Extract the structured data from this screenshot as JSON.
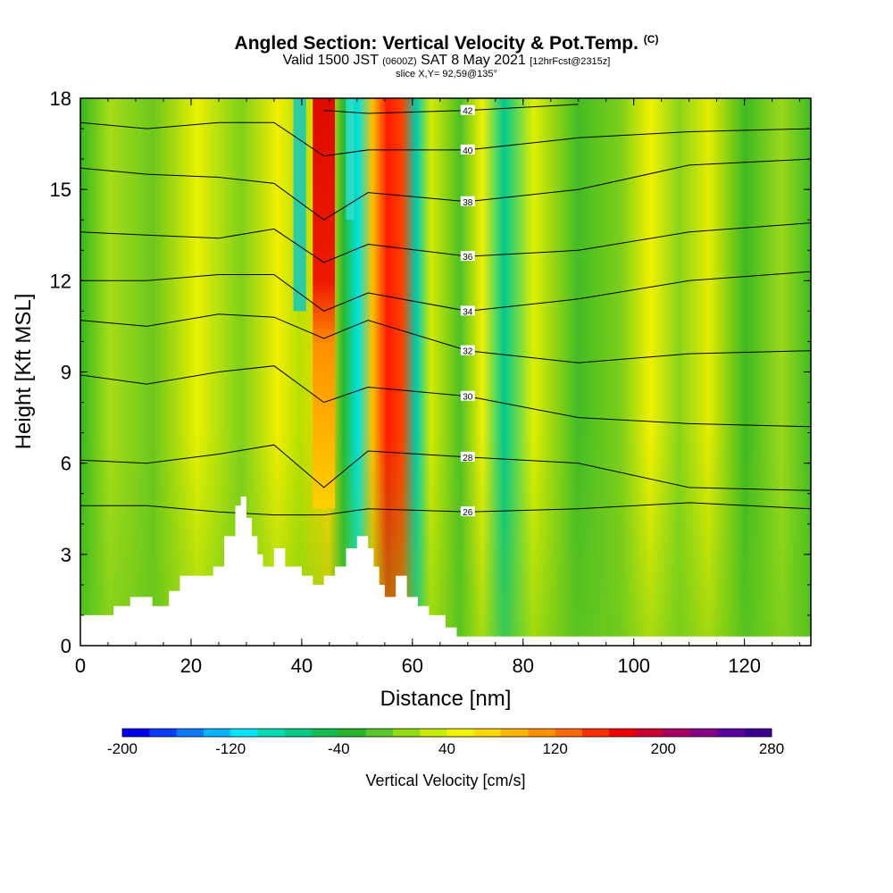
{
  "header": {
    "title": "Angled Section: Vertical Velocity & Pot.Temp.",
    "title_mark": "(C)",
    "valid_prefix": "Valid 1500 JST",
    "valid_utc": "(0600Z)",
    "valid_date": "SAT 8 May 2021",
    "forecast": "[12hrFcst@2315z]",
    "slice": "slice X,Y= 92,59@135°"
  },
  "chart_data": {
    "type": "heatmap",
    "title": "Angled Section: Vertical Velocity & Pot.Temp.",
    "xlabel": "Distance [nm]",
    "ylabel": "Height [Kft MSL]",
    "xlim": [
      0,
      132
    ],
    "ylim": [
      0,
      18
    ],
    "xticks": [
      0,
      20,
      40,
      60,
      80,
      100,
      120
    ],
    "yticks": [
      0,
      3,
      6,
      9,
      12,
      15,
      18
    ],
    "colorbar": {
      "label": "Vertical Velocity [cm/s]",
      "min": -200,
      "max": 280,
      "step": 20,
      "tick_labels": [
        "-200",
        "-120",
        "-40",
        "40",
        "120",
        "200",
        "280"
      ],
      "tick_values": [
        -200,
        -120,
        -40,
        40,
        120,
        200,
        280
      ],
      "colors": [
        "#0000ee",
        "#0a3cff",
        "#0a78ff",
        "#00b4ff",
        "#00e6ff",
        "#00dcb4",
        "#00cc88",
        "#10bf50",
        "#28b428",
        "#58c828",
        "#90dc10",
        "#c8ec00",
        "#f2f200",
        "#ffd800",
        "#ffb400",
        "#ff9000",
        "#ff6a00",
        "#ff3000",
        "#ee0000",
        "#cc0033",
        "#aa0066",
        "#880088",
        "#5a00a0",
        "#3c0090"
      ]
    },
    "terrain": {
      "x": [
        0,
        6,
        6,
        9,
        9,
        13,
        13,
        16,
        16,
        18,
        18,
        20,
        20,
        24,
        24,
        26,
        26,
        28,
        28,
        29,
        29,
        30,
        30,
        31,
        31,
        32,
        32,
        33,
        33,
        35,
        35,
        37,
        37,
        40,
        40,
        42,
        42,
        44,
        44,
        46,
        46,
        48,
        48,
        50,
        50,
        52,
        52,
        53,
        53,
        54,
        54,
        55,
        55,
        57,
        57,
        59,
        59,
        61,
        61,
        63,
        63,
        66,
        66,
        68,
        68,
        71,
        71,
        132
      ],
      "y": [
        1.0,
        1.0,
        1.3,
        1.3,
        1.6,
        1.6,
        1.3,
        1.3,
        1.8,
        1.8,
        2.3,
        2.3,
        2.3,
        2.3,
        2.6,
        2.6,
        3.6,
        3.6,
        4.6,
        4.6,
        4.9,
        4.9,
        4.2,
        4.2,
        3.6,
        3.6,
        3.0,
        3.0,
        2.6,
        2.6,
        3.2,
        3.2,
        2.6,
        2.6,
        2.3,
        2.3,
        2.0,
        2.0,
        2.3,
        2.3,
        2.6,
        2.6,
        3.2,
        3.2,
        3.6,
        3.6,
        3.2,
        3.2,
        2.6,
        2.6,
        2.0,
        2.0,
        1.6,
        1.6,
        2.3,
        2.3,
        1.6,
        1.6,
        1.3,
        1.3,
        1.0,
        1.0,
        0.6,
        0.6,
        0.3,
        0.3,
        0.3,
        0.3
      ]
    },
    "isentropes": [
      {
        "value": 26,
        "label": "26",
        "y": [
          4.6,
          4.6,
          4.4,
          4.3,
          4.3,
          4.5,
          4.4,
          4.5,
          4.7,
          4.5
        ]
      },
      {
        "value": 28,
        "label": "28",
        "y": [
          6.1,
          6.0,
          6.3,
          6.6,
          5.2,
          6.4,
          6.2,
          6.0,
          5.2,
          5.1
        ]
      },
      {
        "value": 30,
        "label": "30",
        "y": [
          8.9,
          8.6,
          9.0,
          9.2,
          8.0,
          8.5,
          8.2,
          7.5,
          7.3,
          7.2
        ]
      },
      {
        "value": 32,
        "label": "32",
        "y": [
          10.7,
          10.5,
          10.9,
          10.8,
          10.1,
          10.7,
          9.7,
          9.3,
          9.6,
          9.7
        ]
      },
      {
        "value": 34,
        "label": "34",
        "y": [
          12.0,
          12.0,
          12.2,
          12.2,
          11.0,
          11.6,
          11.0,
          11.4,
          12.0,
          12.3
        ]
      },
      {
        "value": 36,
        "label": "36",
        "y": [
          13.6,
          13.5,
          13.4,
          13.7,
          12.6,
          13.2,
          12.8,
          13.0,
          13.6,
          13.9
        ]
      },
      {
        "value": 38,
        "label": "38",
        "y": [
          15.7,
          15.5,
          15.4,
          15.2,
          14.0,
          14.9,
          14.6,
          15.0,
          15.8,
          16.0
        ]
      },
      {
        "value": 40,
        "label": "40",
        "y": [
          17.2,
          17.0,
          17.2,
          17.2,
          16.1,
          16.3,
          16.3,
          16.7,
          16.9,
          17.0
        ]
      },
      {
        "value": 42,
        "label": "42",
        "y": [
          null,
          null,
          null,
          null,
          17.6,
          17.5,
          17.6,
          17.8,
          null,
          null
        ]
      }
    ],
    "isentrope_x": [
      0,
      12,
      25,
      35,
      44,
      52,
      70,
      90,
      110,
      132
    ]
  }
}
